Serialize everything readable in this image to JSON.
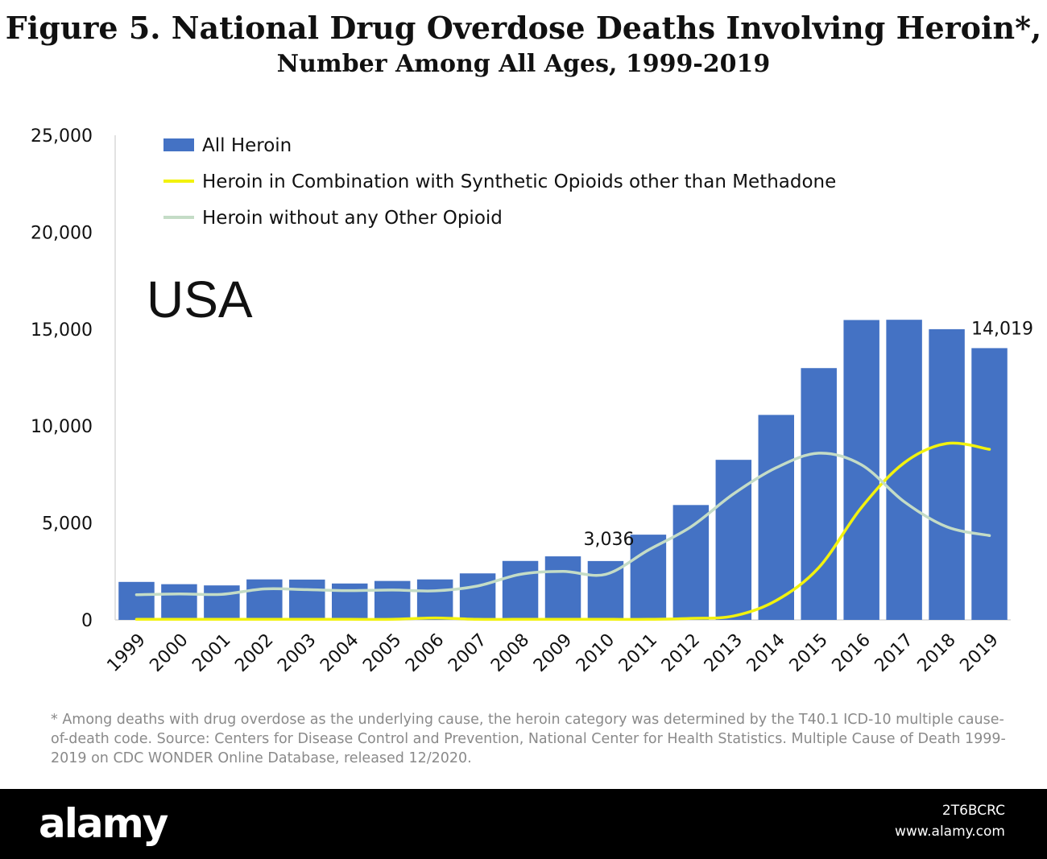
{
  "figure": {
    "title": "Figure 5. National Drug Overdose Deaths Involving Heroin*,",
    "subtitle": "Number Among All Ages, 1999-2019",
    "region_label": "USA",
    "footnote": "* Among deaths with drug overdose as the underlying cause, the heroin category was determined by the T40.1 ICD-10 multiple cause-of-death code. Source: Centers for Disease Control and Prevention, National Center for Health Statistics. Multiple Cause of Death 1999-2019 on CDC WONDER Online Database, released 12/2020."
  },
  "watermark": {
    "brand": "alamy",
    "image_id": "2T6BCRC",
    "site": "www.alamy.com"
  },
  "chart_data": {
    "type": "bar",
    "title": "Figure 5. National Drug Overdose Deaths Involving Heroin*,",
    "subtitle": "Number Among All Ages, 1999-2019",
    "categories": [
      "1999",
      "2000",
      "2001",
      "2002",
      "2003",
      "2004",
      "2005",
      "2006",
      "2007",
      "2008",
      "2009",
      "2010",
      "2011",
      "2012",
      "2013",
      "2014",
      "2015",
      "2016",
      "2017",
      "2018",
      "2019"
    ],
    "ylim": [
      0,
      25000
    ],
    "yticks": [
      0,
      5000,
      10000,
      15000,
      20000,
      25000
    ],
    "ytick_labels": [
      "0",
      "5,000",
      "10,000",
      "15,000",
      "20,000",
      "25,000"
    ],
    "grid": false,
    "legend_position": "top-left",
    "series": [
      {
        "name": "All Heroin",
        "type": "bar",
        "color": "#4472c4",
        "values": [
          1960,
          1842,
          1779,
          2089,
          2080,
          1878,
          2009,
          2088,
          2399,
          3041,
          3278,
          3036,
          4397,
          5925,
          8257,
          10574,
          12989,
          15469,
          15482,
          14996,
          14019
        ]
      },
      {
        "name": "Heroin in Combination with Synthetic Opioids other than Methadone",
        "type": "line",
        "color": "#f2f20e",
        "values": [
          30,
          30,
          30,
          30,
          30,
          30,
          30,
          100,
          30,
          30,
          30,
          30,
          30,
          80,
          200,
          1000,
          2700,
          5800,
          8100,
          9100,
          8800
        ]
      },
      {
        "name": "Heroin without any Other Opioid",
        "type": "line",
        "color": "#c4dcc6",
        "values": [
          1300,
          1340,
          1320,
          1600,
          1560,
          1510,
          1540,
          1500,
          1750,
          2350,
          2500,
          2350,
          3600,
          4800,
          6500,
          7850,
          8600,
          8000,
          6100,
          4800,
          4350
        ]
      }
    ],
    "annotations": [
      {
        "category": "2010",
        "text": "3,036"
      },
      {
        "category": "2019",
        "text": "14,019"
      }
    ]
  }
}
